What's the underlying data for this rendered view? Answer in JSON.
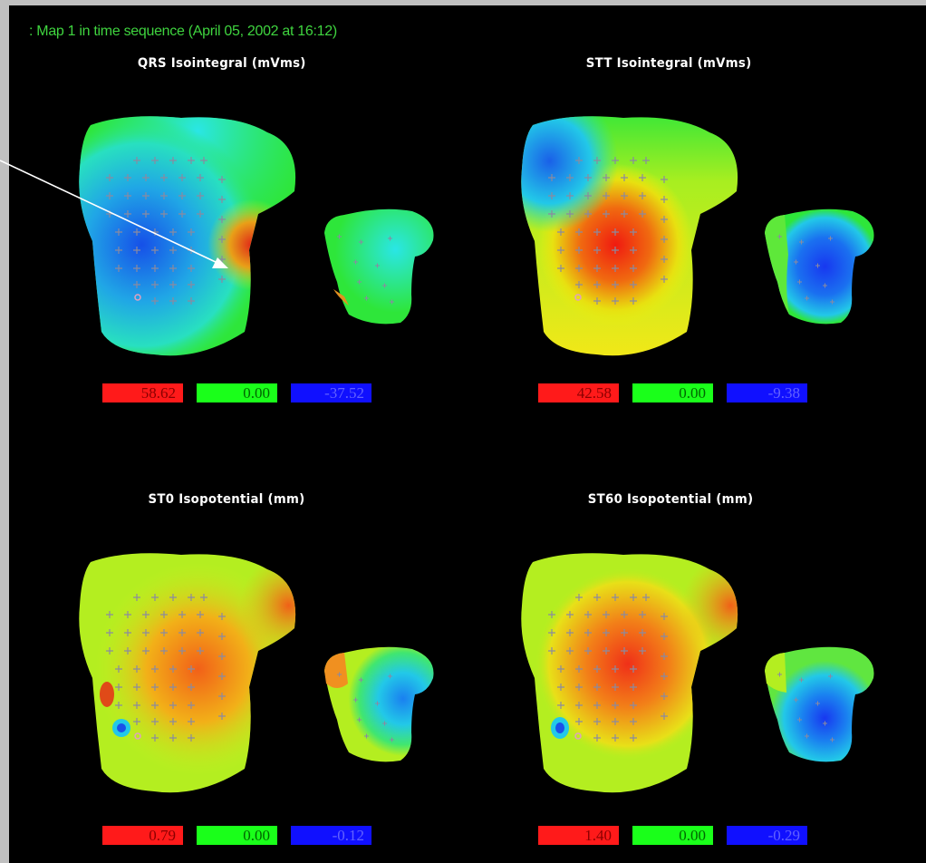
{
  "header": {
    "title": ": Map 1 in time sequence (April 05, 2002 at 16:12)"
  },
  "maps": [
    {
      "title": "QRS Isointegral (mVms)",
      "scale": {
        "max": "58.62",
        "zero": "0.00",
        "min": "-37.52"
      }
    },
    {
      "title": "STT Isointegral (mVms)",
      "scale": {
        "max": "42.58",
        "zero": "0.00",
        "min": "-9.38"
      }
    },
    {
      "title": "ST0 Isopotential (mm)",
      "scale": {
        "max": "0.79",
        "zero": "0.00",
        "min": "-0.12"
      }
    },
    {
      "title": "ST60 Isopotential (mm)",
      "scale": {
        "max": "1.40",
        "zero": "0.00",
        "min": "-0.29"
      }
    }
  ],
  "colors": {
    "background": "#000000",
    "title_green": "#3fd43f",
    "positive": "#ff1a1a",
    "zero": "#1aff1a",
    "negative": "#1010ff"
  }
}
